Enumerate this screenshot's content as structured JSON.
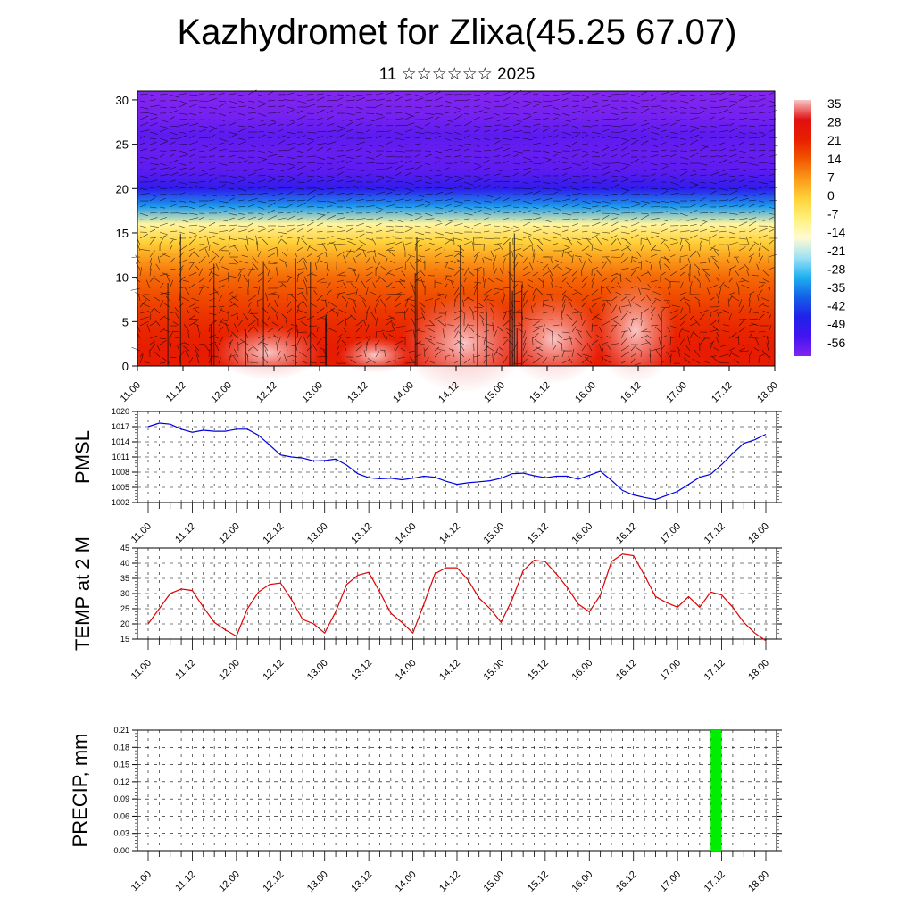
{
  "page": {
    "title": "Kazhydromet for Zlixa(45.25 67.07)",
    "subtitle": "11 ☆☆☆☆☆☆ 2025"
  },
  "chart_data": [
    {
      "type": "heatmap",
      "name": "temperature-cross-section",
      "yticks": [
        0,
        5,
        10,
        15,
        20,
        25,
        30
      ],
      "ylim": [
        0,
        31
      ],
      "xticks": [
        "11.00",
        "11.12",
        "12.00",
        "12.12",
        "13.00",
        "13.12",
        "14.00",
        "14.12",
        "15.00",
        "15.12",
        "16.00",
        "16.12",
        "17.00",
        "17.12",
        "18.00"
      ],
      "colorbar": {
        "labels": [
          "35",
          "28",
          "21",
          "14",
          "7",
          "0",
          "-7",
          "-14",
          "-21",
          "-28",
          "-35",
          "-42",
          "-49",
          "-56"
        ],
        "stops": [
          "#f7c6c6",
          "#e01010",
          "#e81e00",
          "#f25600",
          "#fb9a1a",
          "#ffd23a",
          "#fff07a",
          "#fffbd2",
          "#9ee2f5",
          "#1fb0f0",
          "#1560e8",
          "#1f22e8",
          "#4214f0",
          "#8225f0"
        ]
      },
      "height_levels": [
        0,
        2,
        4,
        6,
        8,
        10,
        12,
        14,
        16,
        18,
        20,
        22,
        24,
        26,
        28,
        30.5
      ],
      "level_values": [
        22,
        22,
        20,
        18,
        15,
        12,
        7,
        0,
        -10,
        -30,
        -45,
        -55,
        -57,
        -55,
        -60,
        -70
      ]
    },
    {
      "type": "line",
      "name": "pmsl",
      "ylabel": "PMSL",
      "yticks": [
        "1002",
        "1005",
        "1008",
        "1011",
        "1014",
        "1017",
        "1020"
      ],
      "ylim": [
        1002,
        1020
      ],
      "xticks": [
        "11.00",
        "11.12",
        "12.00",
        "12.12",
        "13.00",
        "13.12",
        "14.00",
        "14.12",
        "15.00",
        "15.12",
        "16.00",
        "16.12",
        "17.00",
        "17.12",
        "18.00"
      ],
      "x": [
        0,
        3,
        6,
        9,
        12,
        15,
        18,
        21,
        24,
        27,
        30,
        33,
        36,
        39,
        42,
        45,
        48,
        51,
        54,
        57,
        60,
        63,
        66,
        69,
        72,
        75,
        78,
        81,
        84,
        87,
        90,
        93,
        96,
        99,
        102,
        105,
        108,
        111,
        114,
        117,
        120,
        123,
        126,
        129,
        132,
        135,
        138,
        141,
        144,
        147,
        150,
        153,
        156,
        159,
        162,
        165,
        168
      ],
      "values": [
        1017.0,
        1017.7,
        1017.5,
        1016.5,
        1015.9,
        1016.3,
        1016.1,
        1016.1,
        1016.5,
        1016.5,
        1015.3,
        1013.4,
        1011.4,
        1011.0,
        1010.8,
        1010.2,
        1010.3,
        1010.6,
        1009.4,
        1007.7,
        1006.9,
        1006.7,
        1006.8,
        1006.5,
        1006.8,
        1007.2,
        1007.0,
        1006.2,
        1005.6,
        1005.9,
        1006.1,
        1006.3,
        1006.8,
        1007.7,
        1007.8,
        1007.3,
        1006.9,
        1007.2,
        1007.2,
        1006.6,
        1007.4,
        1008.2,
        1006.4,
        1004.4,
        1003.5,
        1003.0,
        1002.6,
        1003.4,
        1004.2,
        1005.6,
        1007.0,
        1007.6,
        1009.5,
        1011.7,
        1013.7,
        1014.4,
        1015.5
      ]
    },
    {
      "type": "line",
      "name": "temp-2m",
      "ylabel": "TEMP at 2 M",
      "yticks": [
        "15",
        "20",
        "25",
        "30",
        "35",
        "40",
        "45"
      ],
      "ylim": [
        15,
        45
      ],
      "xticks": [
        "11.00",
        "11.12",
        "12.00",
        "12.12",
        "13.00",
        "13.12",
        "14.00",
        "14.12",
        "15.00",
        "15.12",
        "16.00",
        "16.12",
        "17.00",
        "17.12",
        "18.00"
      ],
      "x": [
        0,
        3,
        6,
        9,
        12,
        15,
        18,
        21,
        24,
        27,
        30,
        33,
        36,
        39,
        42,
        45,
        48,
        51,
        54,
        57,
        60,
        63,
        66,
        69,
        72,
        75,
        78,
        81,
        84,
        87,
        90,
        93,
        96,
        99,
        102,
        105,
        108,
        111,
        114,
        117,
        120,
        123,
        126,
        129,
        132,
        135,
        138,
        141,
        144,
        147,
        150,
        153,
        156,
        159,
        162,
        165,
        168
      ],
      "values": [
        20.0,
        25.0,
        30.0,
        31.5,
        31.0,
        25.5,
        20.5,
        18.0,
        16.0,
        25.0,
        30.5,
        33.0,
        33.5,
        28.0,
        21.5,
        20.0,
        17.0,
        24.0,
        33.0,
        36.0,
        37.0,
        30.5,
        23.5,
        20.5,
        17.0,
        26.5,
        36.5,
        38.5,
        38.5,
        34.5,
        28.5,
        25.0,
        20.5,
        28.0,
        37.5,
        41.0,
        40.5,
        36.5,
        32.0,
        26.5,
        24.0,
        29.5,
        40.5,
        43.0,
        42.5,
        36.0,
        29.0,
        27.0,
        25.5,
        29.0,
        25.5,
        30.5,
        29.5,
        25.5,
        20.5,
        17.0,
        14.5
      ]
    },
    {
      "type": "bar",
      "name": "precip",
      "ylabel": "PRECIP, mm",
      "yticks": [
        "0.00",
        "0.03",
        "0.06",
        "0.09",
        "0.12",
        "0.15",
        "0.18",
        "0.21"
      ],
      "ylim": [
        0,
        0.21
      ],
      "xticks": [
        "11.00",
        "11.12",
        "12.00",
        "12.12",
        "13.00",
        "13.12",
        "14.00",
        "14.12",
        "15.00",
        "15.12",
        "16.00",
        "16.12",
        "17.00",
        "17.12",
        "18.00"
      ],
      "x_start": [
        153
      ],
      "x_end": [
        156
      ],
      "values": [
        0.21
      ],
      "color": "#00ee00"
    }
  ],
  "colors": {
    "pmsl_line": "#0000e0",
    "temp_line": "#e00000"
  }
}
